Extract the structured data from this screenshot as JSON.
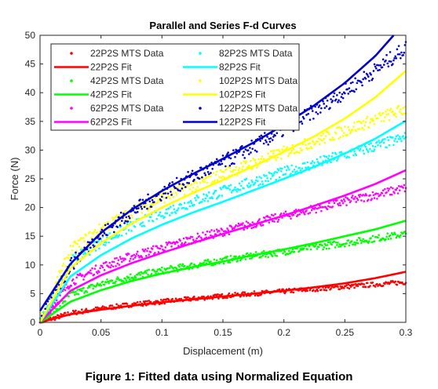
{
  "chart_data": {
    "type": "scatter",
    "title": "Parallel and Series F-d Curves",
    "xlabel": "Displacement (m)",
    "ylabel": "Force (N)",
    "xlim": [
      0,
      0.3
    ],
    "ylim": [
      0,
      50
    ],
    "xticks": [
      "0",
      "0.05",
      "0.1",
      "0.15",
      "0.2",
      "0.25",
      "0.3"
    ],
    "yticks": [
      "0",
      "5",
      "10",
      "15",
      "20",
      "25",
      "30",
      "35",
      "40",
      "45",
      "50"
    ],
    "legend_position": "top-left",
    "grid": false,
    "series": [
      {
        "name": "22P2S MTS Data",
        "kind": "markers",
        "color": "#ff0000",
        "x": [
          0,
          0.025,
          0.05,
          0.075,
          0.1,
          0.125,
          0.15,
          0.175,
          0.2,
          0.225,
          0.25,
          0.275,
          0.3
        ],
        "y": [
          0,
          1.6,
          2.4,
          3.1,
          3.6,
          4.1,
          4.6,
          5.0,
          5.4,
          5.8,
          6.2,
          6.6,
          7.0
        ]
      },
      {
        "name": "22P2S Fit",
        "kind": "line",
        "color": "#ff0000",
        "x": [
          0,
          0.025,
          0.05,
          0.075,
          0.1,
          0.125,
          0.15,
          0.175,
          0.2,
          0.225,
          0.25,
          0.275,
          0.3
        ],
        "y": [
          0,
          1.4,
          2.2,
          2.9,
          3.5,
          4.0,
          4.5,
          5.0,
          5.5,
          6.1,
          6.8,
          7.7,
          8.8
        ]
      },
      {
        "name": "42P2S MTS Data",
        "kind": "markers",
        "color": "#00ff00",
        "x": [
          0,
          0.025,
          0.05,
          0.075,
          0.1,
          0.125,
          0.15,
          0.175,
          0.2,
          0.225,
          0.25,
          0.275,
          0.3
        ],
        "y": [
          0,
          4.8,
          6.7,
          8.0,
          9.0,
          9.9,
          10.8,
          11.6,
          12.3,
          13.1,
          13.8,
          14.6,
          15.4
        ]
      },
      {
        "name": "42P2S Fit",
        "kind": "line",
        "color": "#00ff00",
        "x": [
          0,
          0.025,
          0.05,
          0.075,
          0.1,
          0.125,
          0.15,
          0.175,
          0.2,
          0.225,
          0.25,
          0.275,
          0.3
        ],
        "y": [
          0,
          3.6,
          5.6,
          7.2,
          8.5,
          9.6,
          10.6,
          11.7,
          12.7,
          13.8,
          15.0,
          16.2,
          17.7
        ]
      },
      {
        "name": "62P2S MTS Data",
        "kind": "markers",
        "color": "#ff00ff",
        "x": [
          0,
          0.025,
          0.05,
          0.075,
          0.1,
          0.125,
          0.15,
          0.175,
          0.2,
          0.225,
          0.25,
          0.275,
          0.3
        ],
        "y": [
          0,
          7.0,
          9.6,
          11.5,
          13.0,
          14.5,
          15.8,
          17.2,
          18.5,
          19.8,
          21.0,
          22.2,
          23.4
        ]
      },
      {
        "name": "62P2S Fit",
        "kind": "line",
        "color": "#ff00ff",
        "x": [
          0,
          0.025,
          0.05,
          0.075,
          0.1,
          0.125,
          0.15,
          0.175,
          0.2,
          0.225,
          0.25,
          0.275,
          0.3
        ],
        "y": [
          0,
          5.5,
          8.2,
          10.3,
          12.1,
          13.8,
          15.4,
          17.0,
          18.6,
          20.3,
          22.1,
          24.1,
          26.5
        ]
      },
      {
        "name": "82P2S MTS Data",
        "kind": "markers",
        "color": "#00ffff",
        "x": [
          0,
          0.025,
          0.05,
          0.075,
          0.1,
          0.125,
          0.15,
          0.175,
          0.2,
          0.225,
          0.25,
          0.275,
          0.3
        ],
        "y": [
          0,
          10.5,
          14.0,
          16.7,
          19.0,
          21.0,
          22.8,
          24.5,
          26.1,
          27.6,
          29.2,
          30.7,
          32.2
        ]
      },
      {
        "name": "82P2S Fit",
        "kind": "line",
        "color": "#00ffff",
        "x": [
          0,
          0.025,
          0.05,
          0.075,
          0.1,
          0.125,
          0.15,
          0.175,
          0.2,
          0.225,
          0.25,
          0.275,
          0.3
        ],
        "y": [
          0,
          8.0,
          11.7,
          14.6,
          17.0,
          19.1,
          21.0,
          23.0,
          25.0,
          27.1,
          29.4,
          32.0,
          35.1
        ]
      },
      {
        "name": "102P2S MTS Data",
        "kind": "markers",
        "color": "#ffff00",
        "x": [
          0,
          0.025,
          0.05,
          0.075,
          0.1,
          0.125,
          0.15,
          0.175,
          0.2,
          0.225,
          0.25,
          0.275,
          0.3
        ],
        "y": [
          0,
          12.5,
          16.3,
          19.2,
          21.7,
          23.8,
          25.8,
          27.7,
          29.6,
          31.5,
          33.4,
          35.3,
          37.2
        ]
      },
      {
        "name": "102P2S Fit",
        "kind": "line",
        "color": "#ffff00",
        "x": [
          0,
          0.025,
          0.05,
          0.075,
          0.1,
          0.125,
          0.15,
          0.175,
          0.2,
          0.225,
          0.25,
          0.275,
          0.3
        ],
        "y": [
          0,
          9.5,
          13.8,
          17.2,
          20.0,
          22.5,
          24.8,
          27.2,
          29.7,
          32.4,
          35.5,
          39.2,
          43.8
        ]
      },
      {
        "name": "122P2S MTS Data",
        "kind": "markers",
        "color": "#0000cc",
        "x": [
          0,
          0.025,
          0.05,
          0.075,
          0.1,
          0.125,
          0.15,
          0.175,
          0.2,
          0.225,
          0.25,
          0.275,
          0.3
        ],
        "y": [
          0,
          10.0,
          15.3,
          19.2,
          22.5,
          25.3,
          27.8,
          30.6,
          33.6,
          36.8,
          40.2,
          43.9,
          47.8
        ]
      },
      {
        "name": "122P2S Fit",
        "kind": "line",
        "color": "#0000cc",
        "x": [
          0,
          0.025,
          0.05,
          0.075,
          0.1,
          0.125,
          0.15,
          0.175,
          0.2,
          0.225,
          0.25,
          0.275,
          0.29
        ],
        "y": [
          2.0,
          10.2,
          15.6,
          19.6,
          22.9,
          25.8,
          28.5,
          31.3,
          34.4,
          37.8,
          41.7,
          46.4,
          50.0
        ]
      }
    ]
  },
  "caption": "Figure 1: Fitted data using Normalized Equation"
}
